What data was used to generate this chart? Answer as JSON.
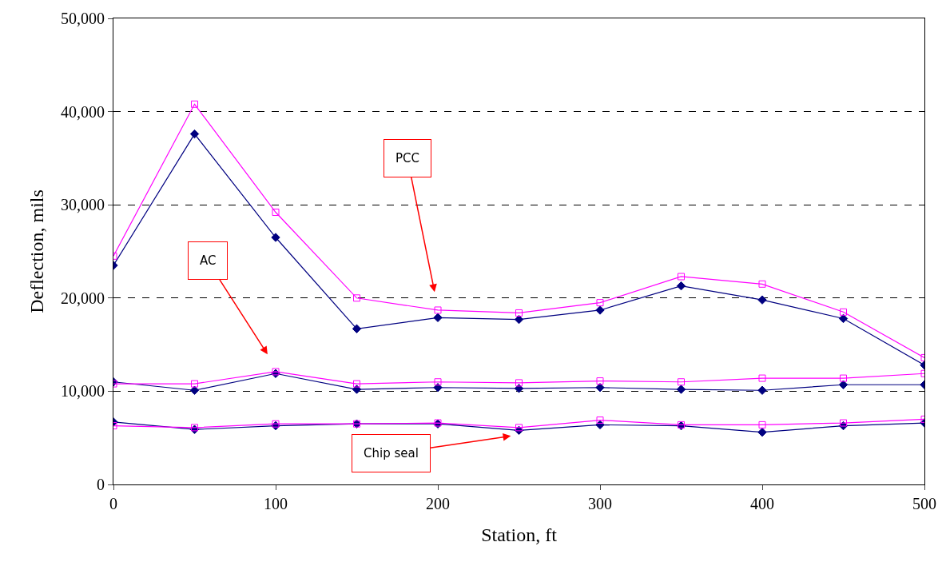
{
  "chart_data": {
    "type": "line",
    "xlabel": "Station, ft",
    "ylabel": "Deflection, mils",
    "x": [
      0,
      50,
      100,
      150,
      200,
      250,
      300,
      350,
      400,
      450,
      500
    ],
    "series": [
      {
        "color": "#000080",
        "marker": "diamond",
        "values": [
          23500,
          37600,
          26500,
          16700,
          17900,
          17700,
          18700,
          21300,
          19800,
          17800,
          12800
        ]
      },
      {
        "color": "#ff00ff",
        "marker": "square",
        "values": [
          24500,
          40800,
          29200,
          20000,
          18700,
          18400,
          19500,
          22300,
          21500,
          18500,
          13600
        ]
      },
      {
        "color": "#000080",
        "marker": "diamond",
        "values": [
          11000,
          10100,
          11900,
          10200,
          10400,
          10300,
          10400,
          10200,
          10100,
          10700,
          10700
        ]
      },
      {
        "color": "#ff00ff",
        "marker": "square",
        "values": [
          10800,
          10800,
          12100,
          10800,
          11000,
          10900,
          11100,
          11000,
          11400,
          11400,
          11900
        ]
      },
      {
        "color": "#000080",
        "marker": "diamond",
        "values": [
          6700,
          5900,
          6300,
          6500,
          6500,
          5800,
          6400,
          6300,
          5600,
          6300,
          6600
        ]
      },
      {
        "color": "#ff00ff",
        "marker": "square",
        "values": [
          6300,
          6100,
          6500,
          6500,
          6600,
          6100,
          6900,
          6400,
          6400,
          6600,
          7000
        ]
      }
    ],
    "xlim": [
      0,
      500
    ],
    "xticks": [
      0,
      100,
      200,
      300,
      400,
      500
    ],
    "ylim": [
      0,
      50000
    ],
    "yticks": [
      {
        "value": 0,
        "label": "0"
      },
      {
        "value": 10000,
        "label": "10,000"
      },
      {
        "value": 20000,
        "label": "20,000"
      },
      {
        "value": 30000,
        "label": "30,000"
      },
      {
        "value": 40000,
        "label": "40,000"
      },
      {
        "value": 50000,
        "label": "50,000"
      }
    ],
    "grid": "y",
    "line_style": "solid",
    "annotations": [
      "PCC",
      "AC",
      "Chip seal"
    ]
  }
}
